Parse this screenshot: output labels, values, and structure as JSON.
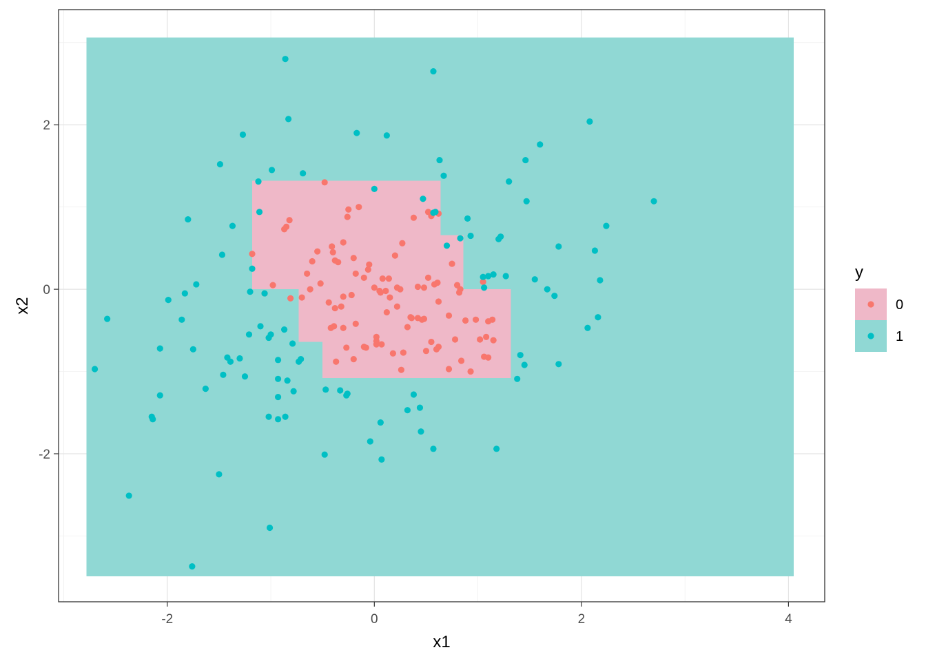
{
  "chart_data": {
    "type": "scatter",
    "title": "",
    "xlabel": "x1",
    "ylabel": "x2",
    "xlim": [
      -3.05,
      4.35
    ],
    "ylim": [
      -3.8,
      3.4
    ],
    "x_ticks": [
      -2,
      0,
      2,
      4
    ],
    "y_ticks": [
      -2,
      0,
      2
    ],
    "x_tick_labels": [
      "-2",
      "0",
      "2",
      "4"
    ],
    "y_tick_labels": [
      "-2",
      "0",
      "2"
    ],
    "grid": true,
    "legend": {
      "title": "y",
      "placement": "right",
      "entries": [
        {
          "label": "0",
          "point_color": "#F8766D",
          "fill_color": "#EFB8C8"
        },
        {
          "label": "1",
          "point_color": "#00BFC4",
          "fill_color": "#90D8D4"
        }
      ]
    },
    "regions": [
      {
        "class": "1",
        "x": [
          -2.78,
          4.05
        ],
        "y": [
          -3.49,
          3.06
        ]
      },
      {
        "class": "0",
        "x": [
          -1.18,
          0.64
        ],
        "y": [
          0.0,
          1.32
        ]
      },
      {
        "class": "0",
        "x": [
          0.64,
          0.86
        ],
        "y": [
          0.0,
          0.66
        ]
      },
      {
        "class": "0",
        "x": [
          -0.73,
          -0.5
        ],
        "y": [
          -0.64,
          0.0
        ]
      },
      {
        "class": "0",
        "x": [
          -0.5,
          1.32
        ],
        "y": [
          -1.08,
          0.0
        ]
      }
    ],
    "series": [
      {
        "name": "0",
        "color": "#F8766D",
        "x": [
          -0.48,
          -0.87,
          -0.85,
          -0.82,
          -0.25,
          -0.15,
          -0.2,
          -0.3,
          -0.38,
          -0.55,
          -0.6,
          -0.65,
          -0.4,
          -0.35,
          -0.18,
          -0.05,
          0.2,
          0.27,
          0.38,
          0.52,
          0.62,
          0.75,
          0.8,
          0.83,
          -1.18,
          -0.98,
          -1.06,
          -0.81,
          -0.7,
          -0.62,
          -0.52,
          -0.44,
          -0.38,
          -0.32,
          -0.22,
          -0.06,
          0.0,
          0.05,
          0.08,
          0.14,
          0.22,
          0.42,
          0.48,
          0.52,
          0.58,
          0.61,
          0.82,
          -0.3,
          -0.1,
          0.12,
          0.22,
          0.35,
          0.42,
          0.48,
          0.62,
          0.72,
          0.88,
          1.02,
          1.08,
          1.15,
          -0.42,
          -0.37,
          -0.3,
          -0.18,
          -0.1,
          0.02,
          0.06,
          0.15,
          0.28,
          0.32,
          0.5,
          0.55,
          0.78,
          0.84,
          0.98,
          1.06,
          1.1,
          -0.27,
          -0.2,
          -0.08,
          0.02,
          0.07,
          0.18,
          0.26,
          0.36,
          0.46,
          0.6,
          0.62,
          0.72,
          0.93,
          1.1,
          1.14,
          1.05,
          -0.39,
          0.02,
          0.11,
          0.55,
          0.25,
          -0.41,
          -0.26
        ],
        "y": [
          1.3,
          0.73,
          0.76,
          0.84,
          0.97,
          1.0,
          0.38,
          0.57,
          0.35,
          0.46,
          0.34,
          0.19,
          0.45,
          0.33,
          0.19,
          0.3,
          0.41,
          0.56,
          0.87,
          0.94,
          0.92,
          0.31,
          0.05,
          0.0,
          0.43,
          0.05,
          -0.05,
          -0.11,
          -0.1,
          0.0,
          0.07,
          -0.16,
          -0.23,
          -0.21,
          -0.07,
          0.24,
          0.02,
          -0.02,
          0.13,
          0.13,
          0.02,
          0.03,
          0.02,
          0.14,
          0.06,
          0.08,
          -0.04,
          -0.09,
          0.14,
          -0.28,
          -0.21,
          -0.34,
          -0.35,
          -0.36,
          -0.15,
          -0.32,
          -0.38,
          -0.61,
          -0.58,
          -0.62,
          -0.47,
          -0.88,
          -0.47,
          -0.42,
          -0.7,
          -0.67,
          -0.04,
          -0.1,
          -0.77,
          -0.46,
          -0.75,
          -0.64,
          -0.61,
          -0.87,
          -0.37,
          -0.82,
          -0.83,
          -0.71,
          -0.85,
          -0.71,
          -0.63,
          -0.67,
          -0.78,
          -0.98,
          -0.35,
          -0.37,
          -0.73,
          -0.7,
          -0.97,
          -1.0,
          -0.39,
          -0.37,
          0.09,
          -0.45,
          -0.58,
          -0.02,
          0.89,
          0.0,
          0.52,
          0.88
        ]
      },
      {
        "name": "1",
        "color": "#00BFC4",
        "x": [
          -0.86,
          0.57,
          -0.83,
          -1.27,
          -0.17,
          0.12,
          -1.49,
          -0.99,
          -0.69,
          0.0,
          0.63,
          0.67,
          0.57,
          0.47,
          0.59,
          0.7,
          0.9,
          0.83,
          0.93,
          1.2,
          1.22,
          1.3,
          1.46,
          1.47,
          1.6,
          2.08,
          2.7,
          2.24,
          1.78,
          2.13,
          1.55,
          1.67,
          1.74,
          2.18,
          2.16,
          2.06,
          1.41,
          1.38,
          1.45,
          1.1,
          1.05,
          1.27,
          1.78,
          -1.12,
          -1.11,
          -1.37,
          -1.8,
          -1.47,
          -1.18,
          -1.72,
          -1.83,
          -1.86,
          -1.99,
          -2.58,
          -2.7,
          -2.07,
          -1.75,
          -1.2,
          -1.06,
          -1.1,
          -1.0,
          -1.3,
          -1.42,
          -1.39,
          -1.46,
          -1.25,
          -0.93,
          -0.84,
          -0.73,
          -0.71,
          -0.79,
          -0.87,
          -1.21,
          -1.02,
          -2.15,
          -2.14,
          -2.37,
          -2.07,
          -1.63,
          -1.5,
          -1.02,
          -0.93,
          -0.93,
          -0.93,
          -0.86,
          -0.78,
          -0.47,
          -0.33,
          -0.26,
          -0.27,
          0.38,
          0.32,
          0.44,
          0.45,
          0.06,
          0.07,
          -0.04,
          0.57,
          1.18,
          -0.48,
          -1.01,
          -1.76,
          1.15,
          1.06
        ],
        "y": [
          2.8,
          2.65,
          2.07,
          1.88,
          1.9,
          1.87,
          1.52,
          1.45,
          1.41,
          1.22,
          1.57,
          1.38,
          0.93,
          1.1,
          0.94,
          0.53,
          0.86,
          0.62,
          0.65,
          0.61,
          0.64,
          1.31,
          1.57,
          1.07,
          1.76,
          2.04,
          1.07,
          0.77,
          0.52,
          0.47,
          0.12,
          0.0,
          -0.08,
          0.11,
          -0.34,
          -0.47,
          -0.8,
          -1.09,
          -0.92,
          0.16,
          0.15,
          0.16,
          -0.91,
          1.31,
          0.94,
          0.77,
          0.85,
          0.42,
          0.25,
          0.06,
          -0.05,
          -0.37,
          -0.13,
          -0.36,
          -0.97,
          -0.72,
          -0.73,
          -0.03,
          -0.05,
          -0.45,
          -0.55,
          -0.84,
          -0.83,
          -0.88,
          -1.04,
          -1.06,
          -0.86,
          -1.11,
          -0.88,
          -0.85,
          -0.66,
          -0.49,
          -0.55,
          -0.59,
          -1.55,
          -1.58,
          -2.51,
          -1.29,
          -1.21,
          -2.25,
          -1.55,
          -1.58,
          -1.09,
          -1.31,
          -1.55,
          -1.24,
          -1.22,
          -1.23,
          -1.27,
          -1.29,
          -1.28,
          -1.47,
          -1.44,
          -1.73,
          -1.62,
          -2.07,
          -1.85,
          -1.94,
          -1.94,
          -2.01,
          -2.9,
          -3.37,
          0.18,
          0.02
        ]
      }
    ]
  }
}
